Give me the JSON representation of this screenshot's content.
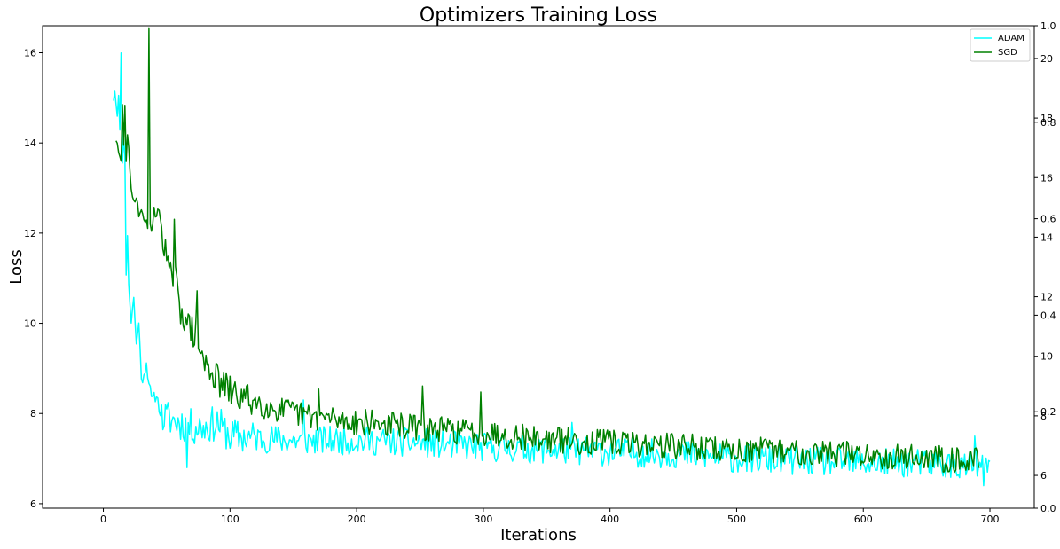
{
  "chart_data": {
    "type": "line",
    "title": "Optimizers Training Loss",
    "xlabel": "Iterations",
    "ylabel": "Loss",
    "xlim": [
      -48,
      735
    ],
    "ylim": [
      5.9,
      16.6
    ],
    "x_ticks": [
      0,
      100,
      200,
      300,
      400,
      500,
      600,
      700
    ],
    "y_ticks": [
      6,
      8,
      10,
      12,
      14,
      16
    ],
    "secondary_axis_inner": {
      "ylim": [
        0.0,
        1.0
      ],
      "ticks": [
        "0.0",
        "0.2",
        "0.4",
        "0.6",
        "0.8",
        "1.0"
      ]
    },
    "secondary_axis_outer": {
      "ylim": [
        4.9,
        21.1
      ],
      "ticks": [
        "6",
        "8",
        "10",
        "12",
        "14",
        "16",
        "18",
        "20"
      ]
    },
    "legend": {
      "placement": "top-right"
    },
    "grid": false,
    "series": [
      {
        "name": "ADAM",
        "color": "#00ffff",
        "scale": "primary",
        "x_start": 8,
        "x_end": 700,
        "seed": 11,
        "noise": 0.32,
        "points": [
          [
            8,
            15.0
          ],
          [
            9,
            15.2
          ],
          [
            10,
            14.9
          ],
          [
            11,
            14.7
          ],
          [
            12,
            15.0
          ],
          [
            13,
            14.2
          ],
          [
            14,
            16.1
          ],
          [
            15,
            13.5
          ],
          [
            16,
            14.2
          ],
          [
            17,
            13.8
          ],
          [
            18,
            11.0
          ],
          [
            19,
            12.0
          ],
          [
            20,
            10.9
          ],
          [
            22,
            10.0
          ],
          [
            24,
            10.6
          ],
          [
            26,
            9.5
          ],
          [
            28,
            10.1
          ],
          [
            30,
            8.7
          ],
          [
            34,
            9.1
          ],
          [
            38,
            8.3
          ],
          [
            42,
            8.4
          ],
          [
            46,
            7.9
          ],
          [
            50,
            7.9
          ],
          [
            60,
            7.8
          ],
          [
            70,
            7.7
          ],
          [
            80,
            7.7
          ],
          [
            90,
            7.8
          ],
          [
            100,
            7.5
          ],
          [
            150,
            7.4
          ],
          [
            200,
            7.4
          ],
          [
            250,
            7.35
          ],
          [
            300,
            7.25
          ],
          [
            350,
            7.2
          ],
          [
            400,
            7.15
          ],
          [
            450,
            7.1
          ],
          [
            500,
            7.0
          ],
          [
            550,
            6.95
          ],
          [
            600,
            6.9
          ],
          [
            650,
            6.9
          ],
          [
            700,
            6.8
          ]
        ],
        "spikes": [
          [
            66,
            6.8
          ],
          [
            158,
            8.3
          ],
          [
            370,
            7.8
          ],
          [
            688,
            7.5
          ],
          [
            695,
            6.4
          ],
          [
            698,
            6.7
          ]
        ]
      },
      {
        "name": "SGD",
        "color": "#008000",
        "scale": "outer",
        "x_start": 10,
        "x_end": 692,
        "seed": 29,
        "noise": 0.45,
        "points": [
          [
            10,
            17.3
          ],
          [
            12,
            16.8
          ],
          [
            14,
            16.5
          ],
          [
            15,
            18.5
          ],
          [
            16,
            17.0
          ],
          [
            17,
            18.5
          ],
          [
            18,
            16.6
          ],
          [
            19,
            17.5
          ],
          [
            20,
            16.9
          ],
          [
            22,
            15.5
          ],
          [
            24,
            15.2
          ],
          [
            26,
            15.4
          ],
          [
            28,
            14.8
          ],
          [
            30,
            14.9
          ],
          [
            32,
            14.5
          ],
          [
            34,
            14.6
          ],
          [
            36,
            14.2
          ],
          [
            38,
            14.5
          ],
          [
            40,
            14.6
          ],
          [
            44,
            14.9
          ],
          [
            48,
            13.9
          ],
          [
            52,
            12.6
          ],
          [
            56,
            12.8
          ],
          [
            60,
            11.6
          ],
          [
            64,
            11.4
          ],
          [
            68,
            10.9
          ],
          [
            72,
            10.8
          ],
          [
            76,
            10.3
          ],
          [
            80,
            9.7
          ],
          [
            85,
            9.6
          ],
          [
            90,
            9.2
          ],
          [
            100,
            8.8
          ],
          [
            110,
            8.6
          ],
          [
            120,
            8.5
          ],
          [
            130,
            8.3
          ],
          [
            140,
            8.2
          ],
          [
            150,
            8.1
          ],
          [
            160,
            8.0
          ],
          [
            170,
            7.95
          ],
          [
            180,
            7.9
          ],
          [
            200,
            7.8
          ],
          [
            230,
            7.7
          ],
          [
            260,
            7.55
          ],
          [
            300,
            7.45
          ],
          [
            350,
            7.2
          ],
          [
            400,
            7.1
          ],
          [
            450,
            7.0
          ],
          [
            500,
            6.85
          ],
          [
            550,
            6.8
          ],
          [
            600,
            6.7
          ],
          [
            650,
            6.6
          ],
          [
            692,
            6.5
          ]
        ],
        "spikes": [
          [
            36,
            21.0
          ],
          [
            38,
            14.2
          ],
          [
            40,
            15.0
          ],
          [
            56,
            14.6
          ],
          [
            62,
            11.6
          ],
          [
            74,
            12.2
          ],
          [
            170,
            8.9
          ],
          [
            252,
            9.0
          ],
          [
            298,
            8.8
          ]
        ]
      }
    ]
  }
}
